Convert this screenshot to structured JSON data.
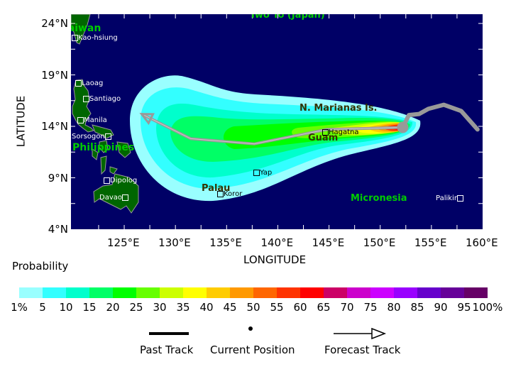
{
  "map": {
    "lon_range": [
      119.8,
      160
    ],
    "lat_range": [
      4,
      24.9
    ],
    "xlabel": "LONGITUDE",
    "ylabel": "LATITUDE",
    "lon_ticks": [
      "125°E",
      "130°E",
      "135°E",
      "140°E",
      "145°E",
      "150°E",
      "155°E",
      "160°E"
    ],
    "lat_ticks": [
      "24°N",
      "19°N",
      "14°N",
      "9°N",
      "4°N"
    ],
    "colors": {
      "ocean": "#000066",
      "land": "#006600",
      "coast": "#999999",
      "track": "#999999",
      "region_label": "#00cc00",
      "island_label": "#333300"
    },
    "region_labels": [
      "Iwo To (Japan)",
      "Taiwan",
      "Philippines",
      "Micronesia"
    ],
    "island_labels": [
      "N. Marianas Is.",
      "Guam",
      "Palau"
    ],
    "cities": [
      "Kao-hsiung",
      "Laoag",
      "Santiago",
      "Manila",
      "Sorsogon",
      "Dipolog",
      "Davao",
      "Koror",
      "Yap",
      "Hagatna",
      "Palikir"
    ],
    "current_position": {
      "lon": 152.2,
      "lat": 13.9
    },
    "past_track": [
      [
        152.2,
        13.9
      ],
      [
        152.8,
        15.1
      ],
      [
        153.8,
        15.2
      ],
      [
        154.7,
        15.7
      ],
      [
        156.2,
        16.1
      ],
      [
        157.9,
        15.5
      ],
      [
        159.5,
        13.7
      ]
    ],
    "forecast_track": [
      [
        152.2,
        13.9
      ],
      [
        144.8,
        13.7
      ],
      [
        137.7,
        12.3
      ],
      [
        131.5,
        12.8
      ],
      [
        126.7,
        15.2
      ]
    ]
  },
  "legend": {
    "title": "Probability",
    "colors": [
      "#99ffff",
      "#33ffff",
      "#00ffcc",
      "#00ff66",
      "#00ff00",
      "#66ff00",
      "#ccff00",
      "#ffff00",
      "#ffcc00",
      "#ff9900",
      "#ff6600",
      "#ff3300",
      "#ff0000",
      "#cc0066",
      "#cc00cc",
      "#cc00ff",
      "#9900ff",
      "#6600cc",
      "#660099",
      "#660066"
    ],
    "labels": [
      "1%",
      "5",
      "10",
      "15",
      "20",
      "25",
      "30",
      "35",
      "40",
      "45",
      "50",
      "55",
      "60",
      "65",
      "70",
      "75",
      "80",
      "85",
      "90",
      "95",
      "100%"
    ],
    "past_track": "Past Track",
    "current_position": "Current Position",
    "forecast_track": "Forecast Track"
  }
}
